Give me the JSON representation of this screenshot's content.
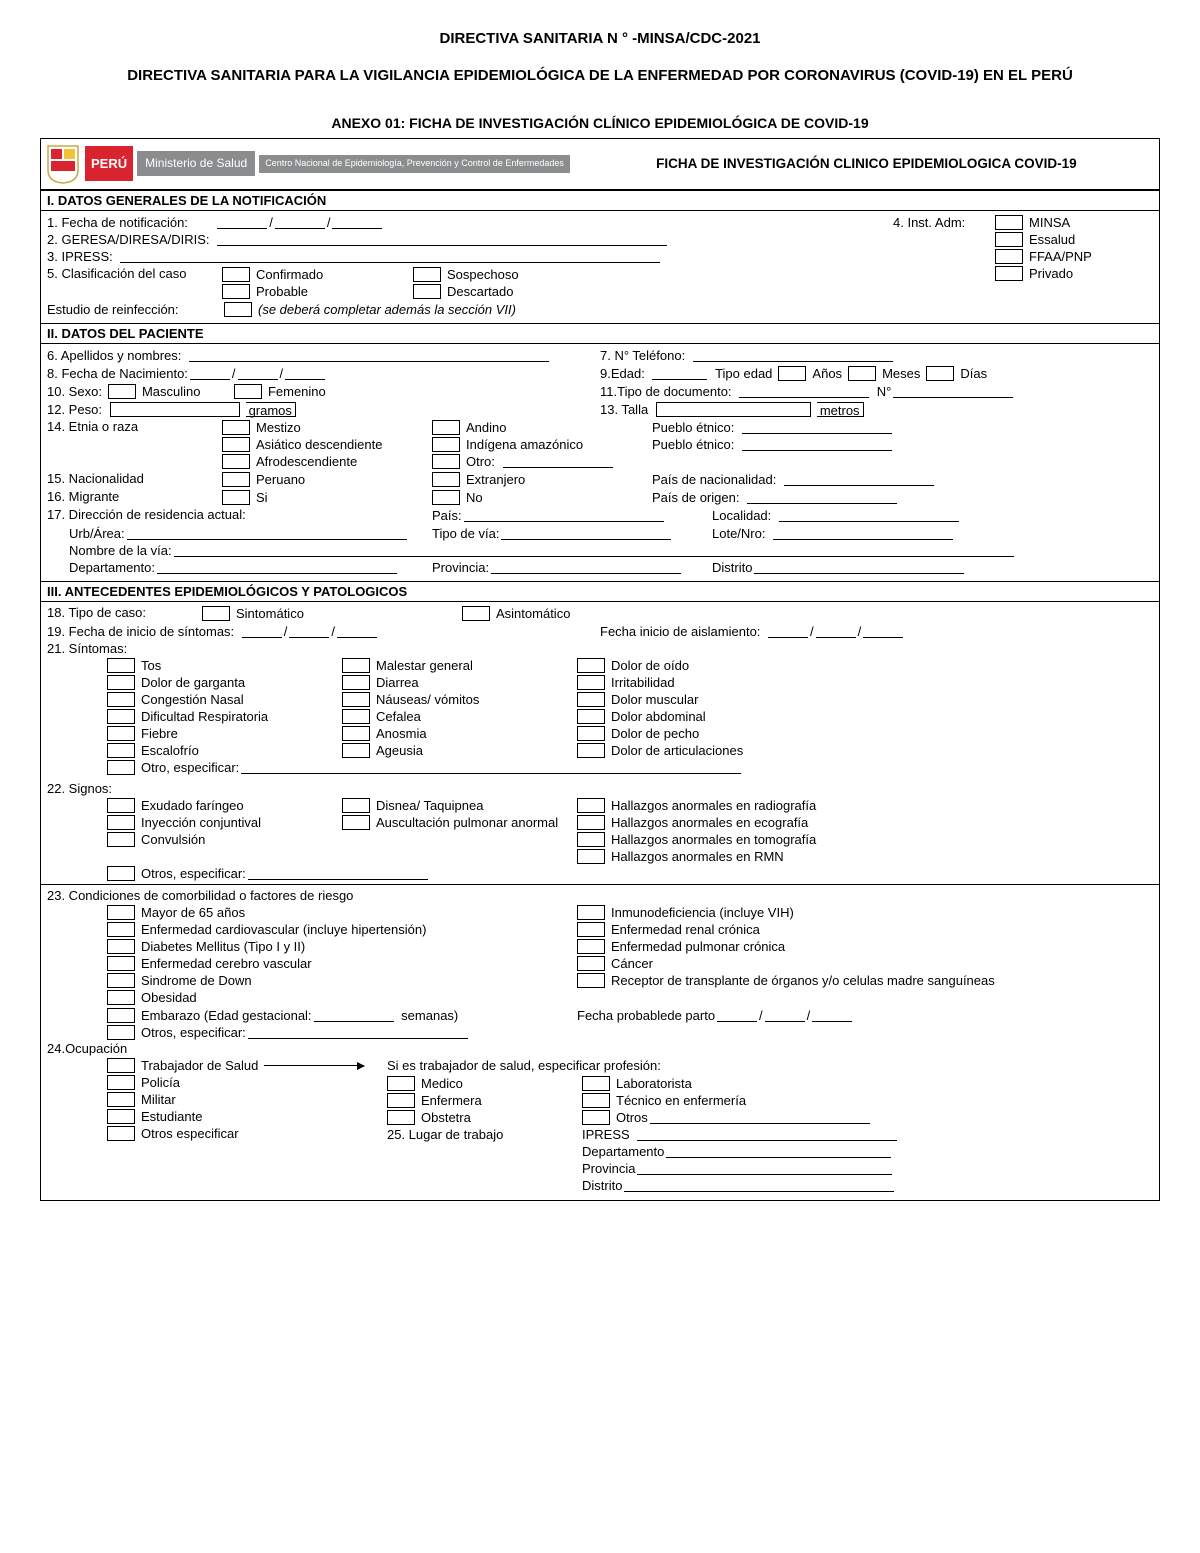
{
  "header": {
    "line1": "DIRECTIVA SANITARIA N °      -MINSA/CDC-2021",
    "line2": "DIRECTIVA SANITARIA PARA LA VIGILANCIA EPIDEMIOLÓGICA DE LA ENFERMEDAD POR CORONAVIRUS (COVID-19) EN EL PERÚ",
    "anexo": "ANEXO 01: FICHA DE INVESTIGACIÓN CLÍNICO EPIDEMIOLÓGICA DE COVID-19"
  },
  "logo": {
    "peru": "PERÚ",
    "ministerio": "Ministerio de Salud",
    "cdc": "Centro Nacional de Epidemiología, Prevención y Control de Enfermedades"
  },
  "fichaTitle": "FICHA DE INVESTIGACIÓN CLINICO EPIDEMIOLOGICA COVID-19",
  "s1": {
    "title": "I. DATOS GENERALES DE LA NOTIFICACIÓN",
    "q1": "1. Fecha de notificación:",
    "q2": "2. GERESA/DIRESA/DIRIS:",
    "q3": "3. IPRESS:",
    "q4": "4. Inst. Adm:",
    "adm": [
      "MINSA",
      "Essalud",
      "FFAA/PNP",
      "Privado"
    ],
    "q5": "5. Clasificación del caso",
    "clas": [
      "Confirmado",
      "Probable",
      "Sospechoso",
      "Descartado"
    ],
    "reinf": "Estudio de reinfección:",
    "reinfNote": "(se deberá completar además la sección VII)"
  },
  "s2": {
    "title": "II. DATOS DEL PACIENTE",
    "q6": "6. Apellidos y nombres:",
    "q7": "7. N° Teléfono:",
    "q8": "8. Fecha de Nacimiento:",
    "q9": "9.Edad:",
    "tipoEdad": "Tipo edad",
    "anos": "Años",
    "meses": "Meses",
    "dias": "Días",
    "q10": "10. Sexo:",
    "masc": "Masculino",
    "fem": "Femenino",
    "q11": "11.Tipo de documento:",
    "nro": "N°",
    "q12": "12. Peso:",
    "gramos": "gramos",
    "q13": "13. Talla",
    "metros": "metros",
    "q14": "14. Etnia o raza",
    "etnia1": [
      "Mestizo",
      "Asiático descendiente",
      "Afrodescendiente"
    ],
    "etnia2": [
      "Andino",
      "Indígena amazónico",
      "Otro:"
    ],
    "pueblo": "Pueblo étnico:",
    "q15": "15. Nacionalidad",
    "peruano": "Peruano",
    "extranjero": "Extranjero",
    "paisNac": "País de nacionalidad:",
    "q16": "16. Migrante",
    "si": "Si",
    "no": "No",
    "paisOrg": "País de origen:",
    "q17": "17. Dirección de residencia actual:",
    "pais": "País:",
    "localidad": "Localidad:",
    "urb": "Urb/Área:",
    "tipoVia": "Tipo de vía:",
    "lote": "Lote/Nro:",
    "nombreVia": "Nombre de la vía:",
    "depto": "Departamento:",
    "prov": "Provincia:",
    "dist": "Distrito"
  },
  "s3": {
    "title": "III. ANTECEDENTES EPIDEMIOLÓGICOS Y PATOLOGICOS",
    "q18": "18. Tipo de caso:",
    "sint": "Sintomático",
    "asint": "Asintomático",
    "q19": "19. Fecha de inicio de síntomas:",
    "fechaAisl": "Fecha inicio de aislamiento:",
    "q21": "21. Síntomas:",
    "sint1": [
      "Tos",
      "Dolor de garganta",
      "Congestión Nasal",
      "Dificultad Respiratoria",
      "Fiebre",
      "Escalofrío"
    ],
    "sint2": [
      "Malestar general",
      "Diarrea",
      "Náuseas/ vómitos",
      "Cefalea",
      "Anosmia",
      "Ageusia"
    ],
    "sint3": [
      "Dolor de oído",
      "Irritabilidad",
      "Dolor muscular",
      "Dolor abdominal",
      "Dolor de pecho",
      "Dolor de articulaciones"
    ],
    "otroEsp": "Otro, especificar:",
    "q22": "22. Signos:",
    "sig1": [
      "Exudado faríngeo",
      "Inyección conjuntival",
      "Convulsión"
    ],
    "sig2": [
      "Disnea/ Taquipnea",
      "Auscultación pulmonar anormal"
    ],
    "sig3": [
      "Hallazgos anormales en radiografía",
      "Hallazgos anormales en ecografía",
      "Hallazgos anormales en tomografía",
      "Hallazgos anormales en RMN"
    ],
    "otrosEsp": "Otros, especificar:",
    "q23": "23. Condiciones de comorbilidad o factores de riesgo",
    "com1": [
      "Mayor de 65 años",
      "Enfermedad cardiovascular (incluye hipertensión)",
      "Diabetes Mellitus (Tipo I y II)",
      "Enfermedad cerebro vascular",
      "Sindrome de Down",
      "Obesidad"
    ],
    "embarazo": "Embarazo (Edad gestacional:",
    "semanas": "semanas)",
    "com2": [
      "Inmunodeficiencia (incluye VIH)",
      "Enfermedad renal crónica",
      "Enfermedad pulmonar crónica",
      "Cáncer",
      "Receptor de transplante de órganos y/o celulas madre sanguíneas"
    ],
    "fechaParto": "Fecha probablede parto",
    "q24": "24.Ocupación",
    "oc1": [
      "Trabajador de Salud",
      "Policía",
      "Militar",
      "Estudiante",
      "Otros especificar"
    ],
    "siTrab": "Si es trabajador de salud, especificar profesión:",
    "prof1": [
      "Medico",
      "Enfermera",
      "Obstetra"
    ],
    "prof2": [
      "Laboratorista",
      "Técnico en enfermería"
    ],
    "otros": "Otros",
    "q25": "25. Lugar de trabajo",
    "lugar": [
      "IPRESS",
      "Departamento",
      "Provincia",
      "Distrito"
    ]
  }
}
